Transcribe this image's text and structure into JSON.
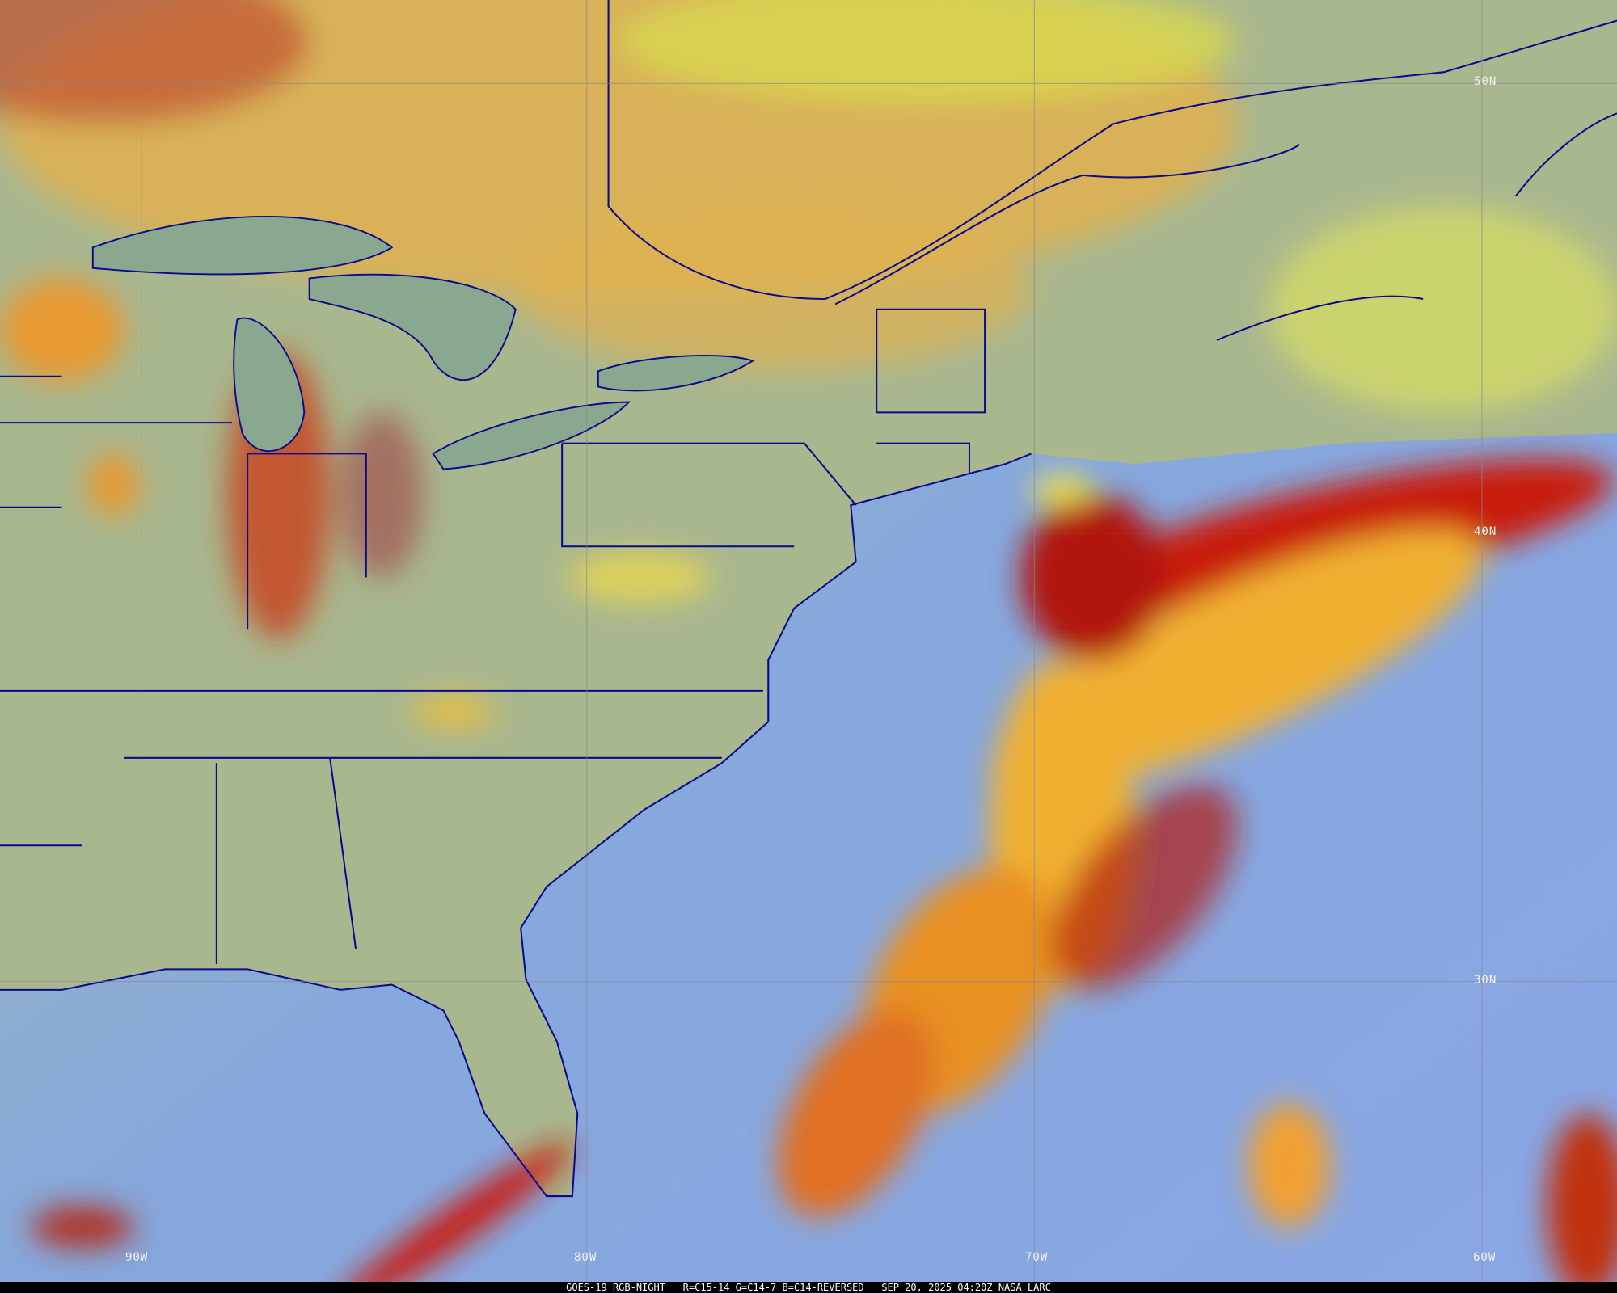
{
  "caption": {
    "satellite": "GOES-19",
    "product": "RGB-NIGHT",
    "recipe": "R=C15-14 G=C14-7 B=C14-REVERSED",
    "datetime": "SEP 20, 2025 04:20Z",
    "credit": "NASA LARC"
  },
  "grid": {
    "latitudes": [
      "50N",
      "40N",
      "30N"
    ],
    "longitudes": [
      "90W",
      "80W",
      "70W",
      "60W"
    ]
  },
  "colors": {
    "land": "#9fb58e",
    "ocean": "#7fa6e0",
    "boundaries": "#0a0a8a",
    "high_cloud": "#c81e0a",
    "mid_cloud": "#f0b030",
    "low_cloud": "#e8d850"
  }
}
